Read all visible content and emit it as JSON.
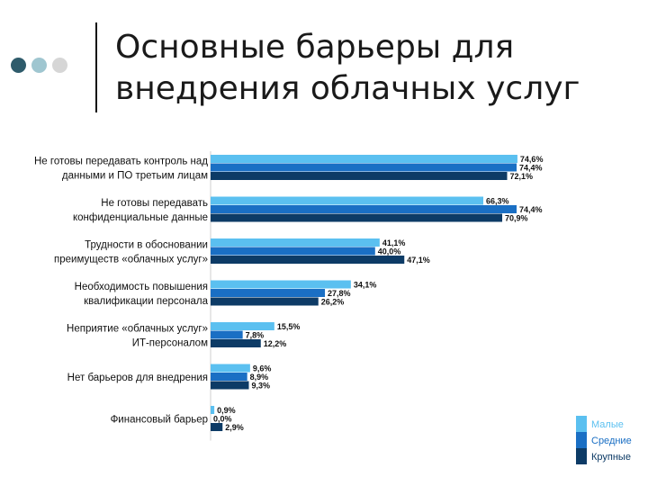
{
  "slide": {
    "title_line1": "Основные барьеры для",
    "title_line2": "внедрения облачных услуг"
  },
  "decor_colors": [
    "#2e5b6b",
    "#9fc6d0",
    "#d6d6d6"
  ],
  "chart_data": {
    "type": "bar",
    "orientation": "horizontal",
    "xlim": [
      0,
      100
    ],
    "categories": [
      [
        "Не готовы передавать контроль над",
        "данными и ПО третьим лицам"
      ],
      [
        "Не готовы передавать",
        "конфиденциальные данные"
      ],
      [
        "Трудности в обосновании",
        "преимуществ «облачных услуг»"
      ],
      [
        "Необходимость повышения",
        "квалификации персонала"
      ],
      [
        "Неприятие «облачных услуг»",
        "ИТ-персоналом"
      ],
      [
        "Нет барьеров для внедрения"
      ],
      [
        "Финансовый барьер"
      ]
    ],
    "series": [
      {
        "name": "Малые",
        "color": "#5bc0f0",
        "values": [
          74.6,
          66.3,
          41.1,
          34.1,
          15.5,
          9.6,
          0.9
        ],
        "labels": [
          "74,6%",
          "66,3%",
          "41,1%",
          "34,1%",
          "15,5%",
          "9,6%",
          "0,9%"
        ]
      },
      {
        "name": "Средние",
        "color": "#1a6fc4",
        "values": [
          74.4,
          74.4,
          40.0,
          27.8,
          7.8,
          8.9,
          0.0
        ],
        "labels": [
          "74,4%",
          "74,4%",
          "40,0%",
          "27,8%",
          "7,8%",
          "8,9%",
          "0,0%"
        ]
      },
      {
        "name": "Крупные",
        "color": "#0d3b66",
        "values": [
          72.1,
          70.9,
          47.1,
          26.2,
          12.2,
          9.3,
          2.9
        ],
        "labels": [
          "72,1%",
          "70,9%",
          "47,1%",
          "26,2%",
          "12,2%",
          "9,3%",
          "2,9%"
        ]
      }
    ],
    "legend_position": "bottom-right",
    "grid": false
  }
}
